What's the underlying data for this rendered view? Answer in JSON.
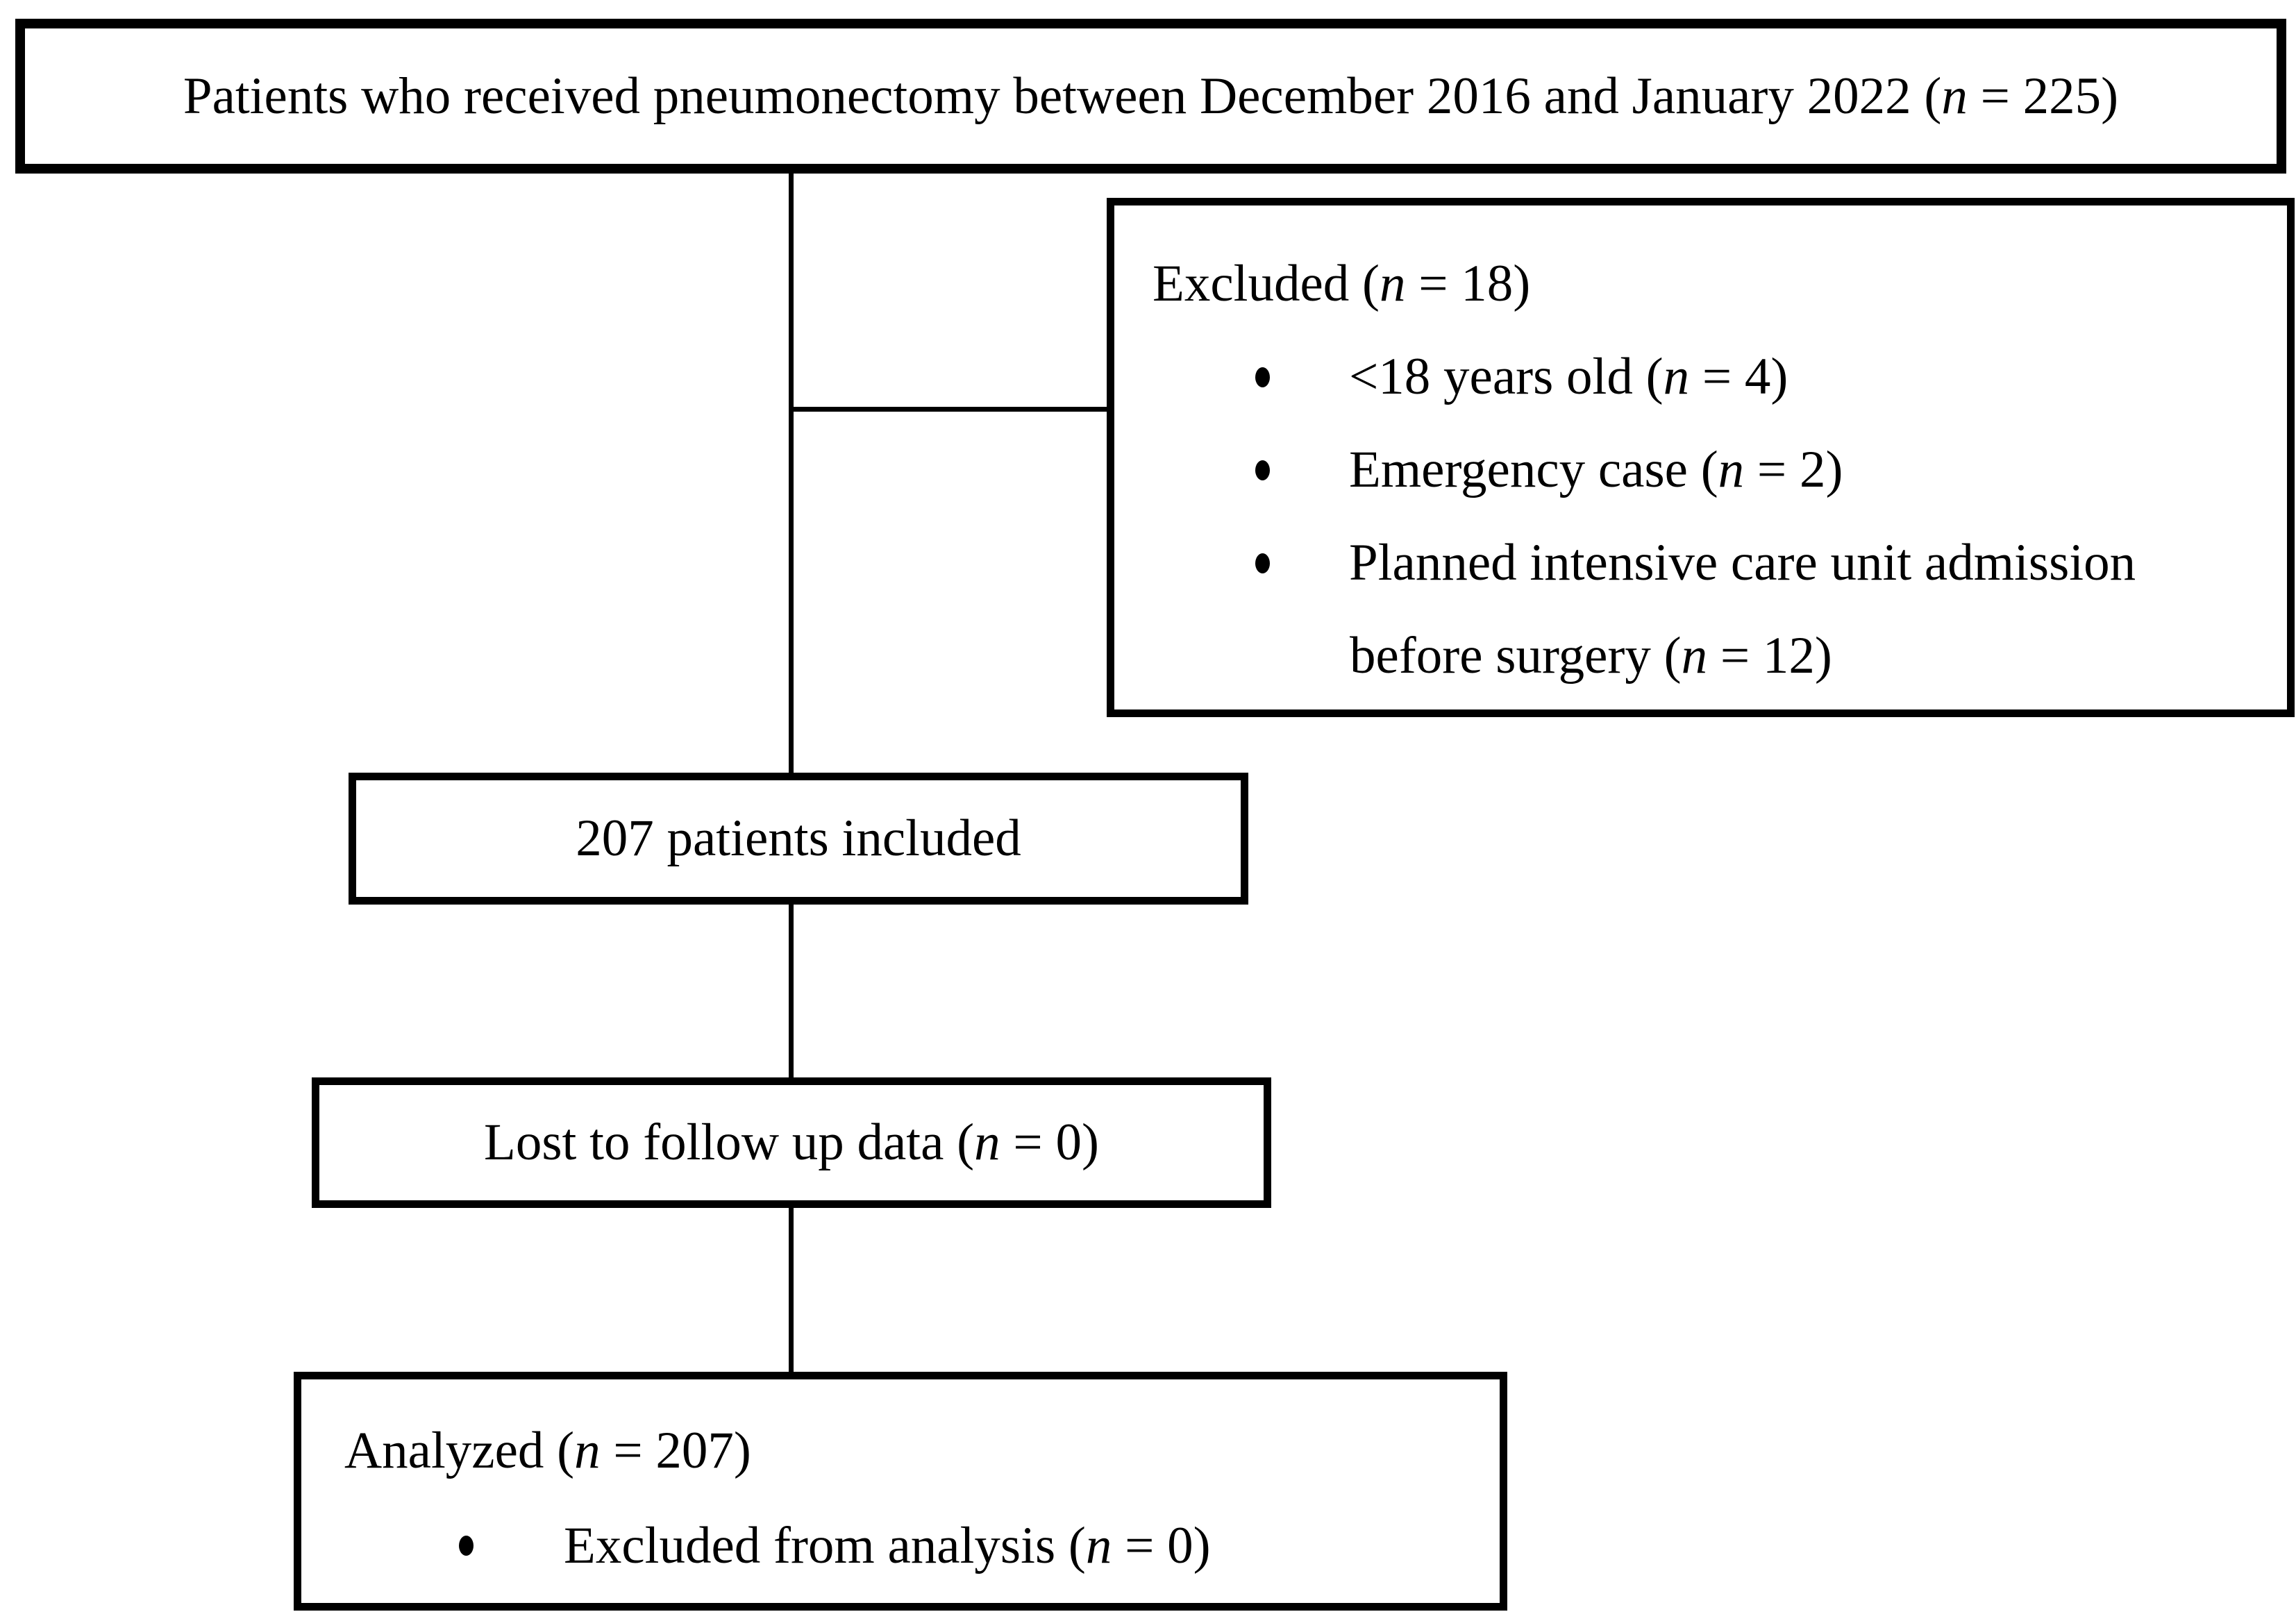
{
  "style": {
    "background": "#ffffff",
    "line_color": "#000000",
    "text_color": "#000000"
  },
  "icons": {
    "bullet": "filled-ellipse"
  },
  "nodes": {
    "enrollment": {
      "pre": "Patients who received pneumonectomy between December 2016 and January 2022 (",
      "n": "n",
      "post": " = 225)"
    },
    "excluded": {
      "title_pre": "Excluded (",
      "n": "n",
      "title_post": " = 18)",
      "bullet1": {
        "pre": "<18 years old (",
        "n": "n",
        "post": " = 4)"
      },
      "bullet2": {
        "pre": "Emergency case (",
        "n": "n",
        "post": " = 2)"
      },
      "bullet3": {
        "line1": "Planned intensive care unit admission",
        "line2_pre": "before surgery (",
        "n": "n",
        "line2_post": " = 12)"
      }
    },
    "included": {
      "text": "207 patients included"
    },
    "lost": {
      "pre": "Lost to follow up data (",
      "n": "n",
      "post": " = 0)"
    },
    "analyzed": {
      "title_pre": "Analyzed (",
      "n": "n",
      "title_post": " = 207)",
      "bullet": {
        "pre": "Excluded from analysis (",
        "n": "n",
        "post": " = 0)"
      }
    }
  }
}
